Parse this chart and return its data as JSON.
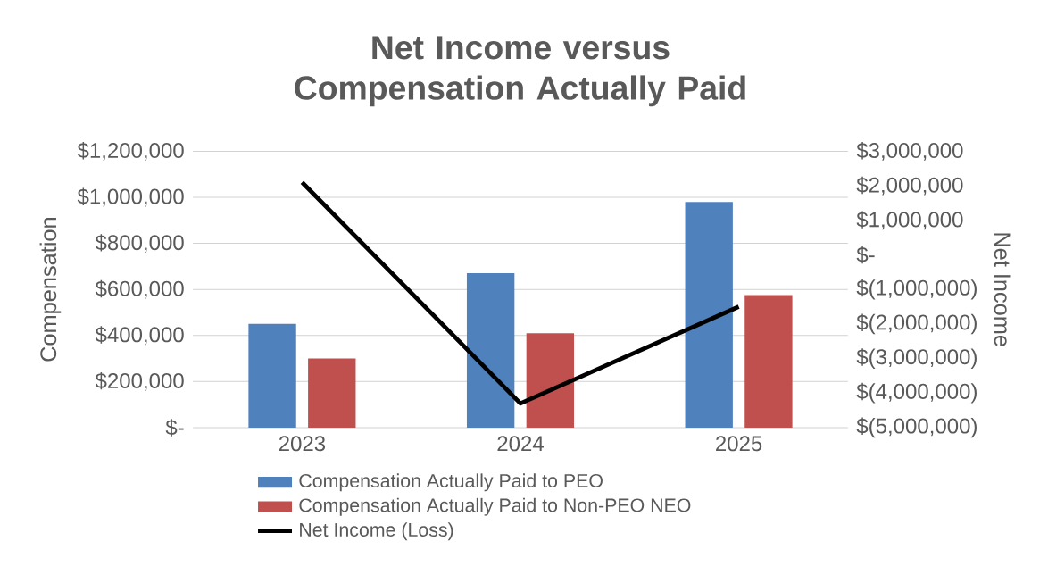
{
  "chart_data": {
    "type": "bar",
    "title": "Net Income versus Compensation Actually Paid",
    "categories": [
      "2023",
      "2024",
      "2025"
    ],
    "ylabel": "Compensation",
    "y2label": "Net Income",
    "series": [
      {
        "name": "Compensation Actually Paid to PEO",
        "color": "#4f81bd",
        "values": [
          450000,
          670000,
          980000
        ]
      },
      {
        "name": "Compensation Actually Paid to Non-PEO NEO",
        "color": "#c0504d",
        "values": [
          300000,
          410000,
          575000
        ]
      },
      {
        "name": "Net Income (Loss)",
        "type": "line",
        "axis": "y2",
        "color": "#000000",
        "values": [
          2100000,
          -4300000,
          -1500000
        ]
      }
    ],
    "ylim": [
      0,
      1200000
    ],
    "yticks": [
      {
        "value": 0,
        "label": "$-"
      },
      {
        "value": 200000,
        "label": "$200,000"
      },
      {
        "value": 400000,
        "label": "$400,000"
      },
      {
        "value": 600000,
        "label": "$600,000"
      },
      {
        "value": 800000,
        "label": "$800,000"
      },
      {
        "value": 1000000,
        "label": "$1,000,000"
      },
      {
        "value": 1200000,
        "label": "$1,200,000"
      }
    ],
    "y2lim": [
      -5000000,
      3000000
    ],
    "y2ticks": [
      {
        "value": -5000000,
        "label": "$(5,000,000)"
      },
      {
        "value": -4000000,
        "label": "$(4,000,000)"
      },
      {
        "value": -3000000,
        "label": "$(3,000,000)"
      },
      {
        "value": -2000000,
        "label": "$(2,000,000)"
      },
      {
        "value": -1000000,
        "label": "$(1,000,000)"
      },
      {
        "value": 0,
        "label": "$-"
      },
      {
        "value": 1000000,
        "label": "$1,000,000"
      },
      {
        "value": 2000000,
        "label": "$2,000,000"
      },
      {
        "value": 3000000,
        "label": "$3,000,000"
      }
    ],
    "grid": "y",
    "legend": "bottom"
  }
}
